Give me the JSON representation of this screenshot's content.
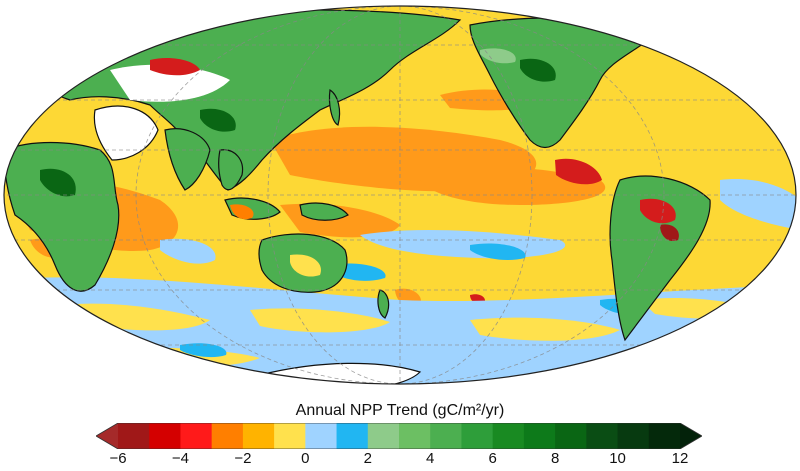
{
  "map": {
    "projection": "Mollweide",
    "central_meridian": "150E",
    "grid": true,
    "ocean_base_color": "#fdd835",
    "land_base_color": "#4caf50",
    "ice_color": "#ffffff"
  },
  "colorbar": {
    "title": "Annual NPP Trend (gC/m²/yr)",
    "min": -6,
    "max": 12,
    "step": 1,
    "tick_labels": [
      "−6",
      "−4",
      "−2",
      "0",
      "2",
      "4",
      "6",
      "8",
      "10",
      "12"
    ],
    "extend": "both",
    "colors": [
      "#a01818",
      "#d40000",
      "#ff1a1a",
      "#ff7f00",
      "#ffb300",
      "#ffe14d",
      "#9fd3ff",
      "#21b6f2",
      "#8ecb8a",
      "#6cbf63",
      "#4caf50",
      "#2e9e3a",
      "#198a22",
      "#0d7a1a",
      "#0a6614",
      "#0a4d14",
      "#073a10",
      "#04290b"
    ],
    "low_extend_color": "#a52a2a",
    "high_extend_color": "#03220a"
  }
}
